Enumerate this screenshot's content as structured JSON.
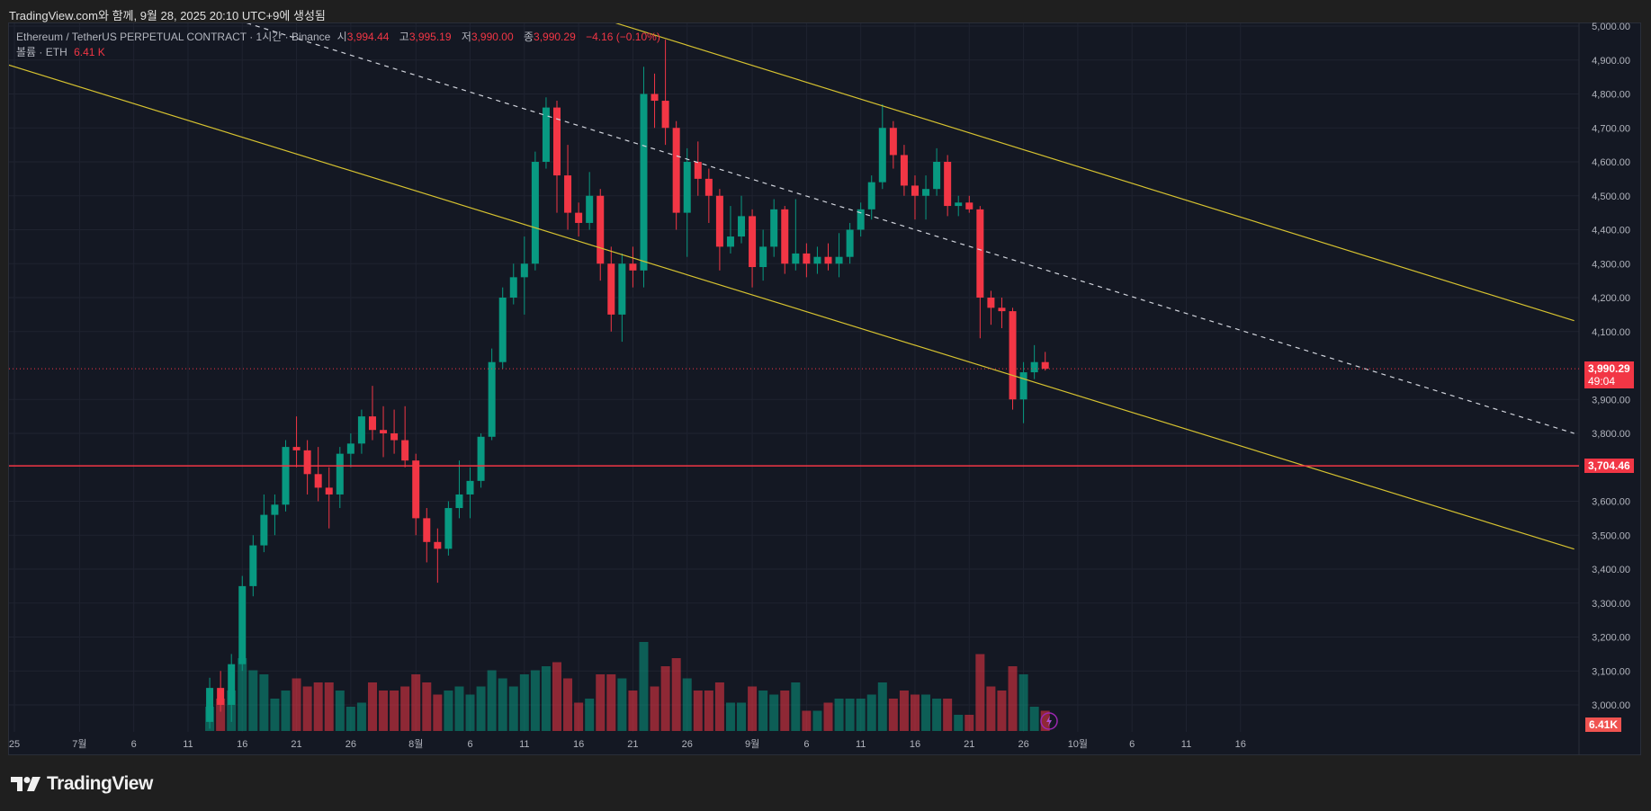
{
  "top_caption": "TradingView.com와 함께, 9월 28, 2025 20:10 UTC+9에 생성됨",
  "legend": {
    "symbol": "Ethereum / TetherUS PERPETUAL CONTRACT · 1시간 · Binance",
    "open_label": "시",
    "open": "3,994.44",
    "high_label": "고",
    "high": "3,995.19",
    "low_label": "저",
    "low": "3,990.00",
    "close_label": "종",
    "close": "3,990.29",
    "change": "−4.16 (−0.10%)",
    "volume_label": "볼륨 · ETH",
    "volume": "6.41 K"
  },
  "price_axis": {
    "ticks": [
      "5,000.00",
      "4,900.00",
      "4,800.00",
      "4,700.00",
      "4,600.00",
      "4,500.00",
      "4,400.00",
      "4,300.00",
      "4,200.00",
      "4,100.00",
      "3,900.00",
      "3,800.00",
      "3,600.00",
      "3,500.00",
      "3,400.00",
      "3,300.00",
      "3,200.00",
      "3,100.00",
      "3,000.00"
    ],
    "current_price_tag": "3,990.29",
    "countdown": "49:04",
    "hline_tag": "3,704.46",
    "volume_tag": "6.41K"
  },
  "time_axis": {
    "ticks": [
      {
        "label": "25",
        "date": "2025-06-25"
      },
      {
        "label": "7월",
        "date": "2025-07-01"
      },
      {
        "label": "6",
        "date": "2025-07-06"
      },
      {
        "label": "11",
        "date": "2025-07-11"
      },
      {
        "label": "16",
        "date": "2025-07-16"
      },
      {
        "label": "21",
        "date": "2025-07-21"
      },
      {
        "label": "26",
        "date": "2025-07-26"
      },
      {
        "label": "8월",
        "date": "2025-08-01"
      },
      {
        "label": "6",
        "date": "2025-08-06"
      },
      {
        "label": "11",
        "date": "2025-08-11"
      },
      {
        "label": "16",
        "date": "2025-08-16"
      },
      {
        "label": "21",
        "date": "2025-08-21"
      },
      {
        "label": "26",
        "date": "2025-08-26"
      },
      {
        "label": "9월",
        "date": "2025-09-01"
      },
      {
        "label": "6",
        "date": "2025-09-06"
      },
      {
        "label": "11",
        "date": "2025-09-11"
      },
      {
        "label": "16",
        "date": "2025-09-16"
      },
      {
        "label": "21",
        "date": "2025-09-21"
      },
      {
        "label": "26",
        "date": "2025-09-26"
      },
      {
        "label": "10월",
        "date": "2025-10-01"
      },
      {
        "label": "6",
        "date": "2025-10-06"
      },
      {
        "label": "11",
        "date": "2025-10-11"
      },
      {
        "label": "16",
        "date": "2025-10-16"
      }
    ]
  },
  "footer": {
    "brand": "TradingView"
  },
  "colors": {
    "up": "#089981",
    "down": "#f23645",
    "trendline": "#d6c230",
    "dashed": "#d1d4dc",
    "hline": "#f23645",
    "background": "#141823"
  },
  "chart_data": {
    "type": "candlestick",
    "ylim": [
      2960,
      5010
    ],
    "xlim": [
      "2025-06-25",
      "2025-10-18"
    ],
    "grid": true,
    "ohlc_columns": [
      "date",
      "open",
      "high",
      "low",
      "close",
      "volume_k"
    ],
    "ohlc": [
      [
        "2025-07-13",
        2950,
        3080,
        2930,
        3050,
        6
      ],
      [
        "2025-07-14",
        3050,
        3100,
        2980,
        3000,
        8
      ],
      [
        "2025-07-15",
        3000,
        3150,
        2950,
        3120,
        10
      ],
      [
        "2025-07-16",
        3120,
        3380,
        3100,
        3350,
        18
      ],
      [
        "2025-07-17",
        3350,
        3500,
        3320,
        3470,
        15
      ],
      [
        "2025-07-18",
        3470,
        3620,
        3450,
        3560,
        14
      ],
      [
        "2025-07-19",
        3560,
        3620,
        3500,
        3590,
        8
      ],
      [
        "2025-07-20",
        3590,
        3780,
        3570,
        3760,
        10
      ],
      [
        "2025-07-21",
        3760,
        3850,
        3700,
        3750,
        13
      ],
      [
        "2025-07-22",
        3750,
        3780,
        3620,
        3680,
        11
      ],
      [
        "2025-07-23",
        3680,
        3760,
        3600,
        3640,
        12
      ],
      [
        "2025-07-24",
        3640,
        3700,
        3520,
        3620,
        12
      ],
      [
        "2025-07-25",
        3620,
        3760,
        3580,
        3740,
        10
      ],
      [
        "2025-07-26",
        3740,
        3800,
        3700,
        3770,
        6
      ],
      [
        "2025-07-27",
        3770,
        3870,
        3740,
        3850,
        7
      ],
      [
        "2025-07-28",
        3850,
        3940,
        3780,
        3810,
        12
      ],
      [
        "2025-07-29",
        3810,
        3880,
        3730,
        3800,
        10
      ],
      [
        "2025-07-30",
        3800,
        3870,
        3740,
        3780,
        10
      ],
      [
        "2025-07-31",
        3780,
        3880,
        3700,
        3720,
        11
      ],
      [
        "2025-08-01",
        3720,
        3740,
        3500,
        3550,
        14
      ],
      [
        "2025-08-02",
        3550,
        3580,
        3420,
        3480,
        12
      ],
      [
        "2025-08-03",
        3480,
        3520,
        3360,
        3460,
        9
      ],
      [
        "2025-08-04",
        3460,
        3600,
        3440,
        3580,
        10
      ],
      [
        "2025-08-05",
        3580,
        3720,
        3550,
        3620,
        11
      ],
      [
        "2025-08-06",
        3620,
        3700,
        3550,
        3660,
        9
      ],
      [
        "2025-08-07",
        3660,
        3800,
        3640,
        3790,
        11
      ],
      [
        "2025-08-08",
        3790,
        4050,
        3780,
        4010,
        15
      ],
      [
        "2025-08-09",
        4010,
        4230,
        3990,
        4200,
        13
      ],
      [
        "2025-08-10",
        4200,
        4300,
        4180,
        4260,
        11
      ],
      [
        "2025-08-11",
        4260,
        4380,
        4150,
        4300,
        14
      ],
      [
        "2025-08-12",
        4300,
        4630,
        4280,
        4600,
        15
      ],
      [
        "2025-08-13",
        4600,
        4790,
        4580,
        4760,
        16
      ],
      [
        "2025-08-14",
        4760,
        4780,
        4450,
        4560,
        17
      ],
      [
        "2025-08-15",
        4560,
        4650,
        4400,
        4450,
        13
      ],
      [
        "2025-08-16",
        4450,
        4480,
        4380,
        4420,
        7
      ],
      [
        "2025-08-17",
        4420,
        4570,
        4400,
        4500,
        8
      ],
      [
        "2025-08-18",
        4500,
        4520,
        4250,
        4300,
        14
      ],
      [
        "2025-08-19",
        4300,
        4350,
        4100,
        4150,
        14
      ],
      [
        "2025-08-20",
        4150,
        4330,
        4070,
        4300,
        13
      ],
      [
        "2025-08-21",
        4300,
        4350,
        4230,
        4280,
        10
      ],
      [
        "2025-08-22",
        4280,
        4880,
        4230,
        4800,
        22
      ],
      [
        "2025-08-23",
        4800,
        4860,
        4700,
        4780,
        11
      ],
      [
        "2025-08-24",
        4780,
        4960,
        4650,
        4700,
        16
      ],
      [
        "2025-08-25",
        4700,
        4720,
        4400,
        4450,
        18
      ],
      [
        "2025-08-26",
        4450,
        4640,
        4320,
        4600,
        13
      ],
      [
        "2025-08-27",
        4600,
        4660,
        4500,
        4550,
        10
      ],
      [
        "2025-08-28",
        4550,
        4580,
        4420,
        4500,
        10
      ],
      [
        "2025-08-29",
        4500,
        4520,
        4280,
        4350,
        12
      ],
      [
        "2025-08-30",
        4350,
        4470,
        4330,
        4380,
        7
      ],
      [
        "2025-08-31",
        4380,
        4500,
        4360,
        4440,
        7
      ],
      [
        "2025-09-01",
        4440,
        4460,
        4230,
        4290,
        11
      ],
      [
        "2025-09-02",
        4290,
        4400,
        4250,
        4350,
        10
      ],
      [
        "2025-09-03",
        4350,
        4490,
        4320,
        4460,
        9
      ],
      [
        "2025-09-04",
        4460,
        4470,
        4270,
        4300,
        10
      ],
      [
        "2025-09-05",
        4300,
        4490,
        4280,
        4330,
        12
      ],
      [
        "2025-09-06",
        4330,
        4360,
        4260,
        4300,
        5
      ],
      [
        "2025-09-07",
        4300,
        4350,
        4270,
        4320,
        5
      ],
      [
        "2025-09-08",
        4320,
        4360,
        4280,
        4300,
        7
      ],
      [
        "2025-09-09",
        4300,
        4390,
        4260,
        4320,
        8
      ],
      [
        "2025-09-10",
        4320,
        4420,
        4300,
        4400,
        8
      ],
      [
        "2025-09-11",
        4400,
        4480,
        4380,
        4460,
        8
      ],
      [
        "2025-09-12",
        4460,
        4560,
        4430,
        4540,
        9
      ],
      [
        "2025-09-13",
        4540,
        4770,
        4520,
        4700,
        12
      ],
      [
        "2025-09-14",
        4700,
        4720,
        4580,
        4620,
        8
      ],
      [
        "2025-09-15",
        4620,
        4650,
        4500,
        4530,
        10
      ],
      [
        "2025-09-16",
        4530,
        4560,
        4430,
        4500,
        9
      ],
      [
        "2025-09-17",
        4500,
        4560,
        4430,
        4520,
        9
      ],
      [
        "2025-09-18",
        4520,
        4640,
        4500,
        4600,
        8
      ],
      [
        "2025-09-19",
        4600,
        4620,
        4440,
        4470,
        8
      ],
      [
        "2025-09-20",
        4470,
        4500,
        4440,
        4480,
        4
      ],
      [
        "2025-09-21",
        4480,
        4500,
        4450,
        4460,
        4
      ],
      [
        "2025-09-22",
        4460,
        4470,
        4080,
        4200,
        19
      ],
      [
        "2025-09-23",
        4200,
        4220,
        4120,
        4170,
        11
      ],
      [
        "2025-09-24",
        4170,
        4200,
        4110,
        4160,
        10
      ],
      [
        "2025-09-25",
        4160,
        4170,
        3870,
        3900,
        16
      ],
      [
        "2025-09-26",
        3900,
        4010,
        3830,
        3980,
        14
      ],
      [
        "2025-09-27",
        3980,
        4060,
        3960,
        4010,
        6
      ],
      [
        "2025-09-28",
        4010,
        4040,
        3985,
        3990.29,
        5
      ]
    ],
    "trendlines": [
      {
        "style": "solid",
        "color": "#d6c230",
        "from": [
          "2025-08-19T22:00",
          5009
        ],
        "to": [
          "2025-11-16T06:00",
          4132
        ]
      },
      {
        "style": "solid",
        "color": "#d6c230",
        "from": [
          "2025-06-24T10:00",
          4891
        ],
        "to": [
          "2025-11-16T06:00",
          3459
        ]
      },
      {
        "style": "dashed",
        "color": "#d1d4dc",
        "from": [
          "2025-07-16T22:00",
          5009
        ],
        "to": [
          "2025-11-16T06:00",
          3800
        ]
      }
    ],
    "horizontal_line": 3704.46,
    "current_price": 3990.29
  }
}
